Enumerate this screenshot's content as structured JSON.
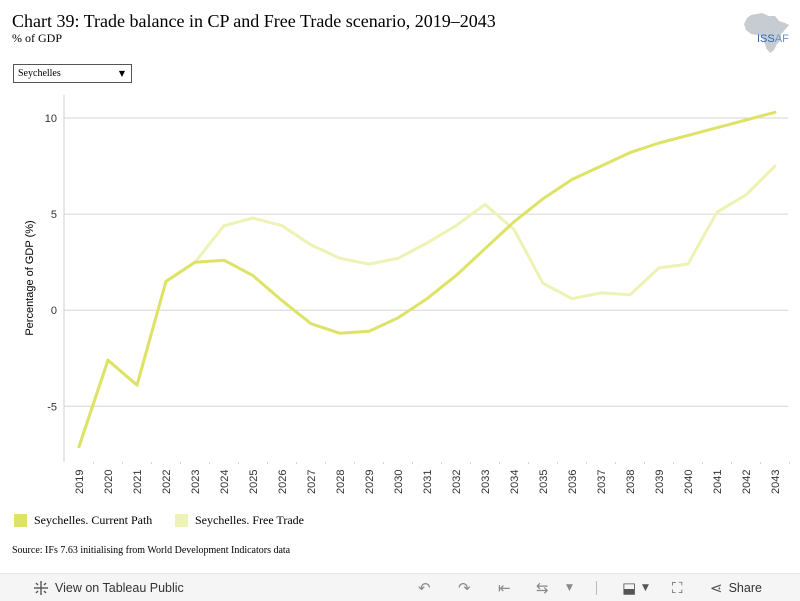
{
  "header": {
    "title": "Chart 39: Trade balance in CP and Free Trade scenario, 2019–2043",
    "subtitle": "% of GDP"
  },
  "logo": {
    "text_main": "ISS",
    "text_secondary": "AF",
    "icon": "africa-map-icon"
  },
  "filter": {
    "selected": "Seychelles",
    "icon": "dropdown-arrow-icon"
  },
  "chart_data": {
    "type": "line",
    "ylabel": "Percentage of GDP (%)",
    "xlabel": "",
    "ylim": [
      -7.9,
      11.2
    ],
    "yticks": [
      -5,
      0,
      5,
      10
    ],
    "grid": true,
    "legend": "bottom-left",
    "x": [
      "2019",
      "2020",
      "2021",
      "2022",
      "2023",
      "2024",
      "2025",
      "2026",
      "2027",
      "2028",
      "2029",
      "2030",
      "2031",
      "2032",
      "2033",
      "2034",
      "2035",
      "2036",
      "2037",
      "2038",
      "2039",
      "2040",
      "2041",
      "2042",
      "2043"
    ],
    "series": [
      {
        "name": "Seychelles. Current Path",
        "color": "#dde366",
        "values": [
          -7.1,
          -2.6,
          -3.9,
          1.5,
          2.5,
          2.6,
          1.8,
          0.5,
          -0.7,
          -1.2,
          -1.1,
          -0.4,
          0.6,
          1.8,
          3.2,
          4.6,
          5.8,
          6.8,
          7.5,
          8.2,
          8.7,
          9.1,
          9.5,
          9.9,
          10.3
        ]
      },
      {
        "name": "Seychelles. Free Trade",
        "color": "#eef2b4",
        "values": [
          -7.1,
          -2.6,
          -3.9,
          1.5,
          2.5,
          4.4,
          4.8,
          4.4,
          3.4,
          2.7,
          2.4,
          2.7,
          3.5,
          4.4,
          5.5,
          4.2,
          1.4,
          0.6,
          0.9,
          0.8,
          2.2,
          2.4,
          5.1,
          6.0,
          7.5
        ]
      }
    ]
  },
  "source": "Source: IFs 7.63 initialising from World Development Indicators data",
  "toolbar": {
    "view_label": "View on Tableau Public",
    "share_label": "Share"
  }
}
